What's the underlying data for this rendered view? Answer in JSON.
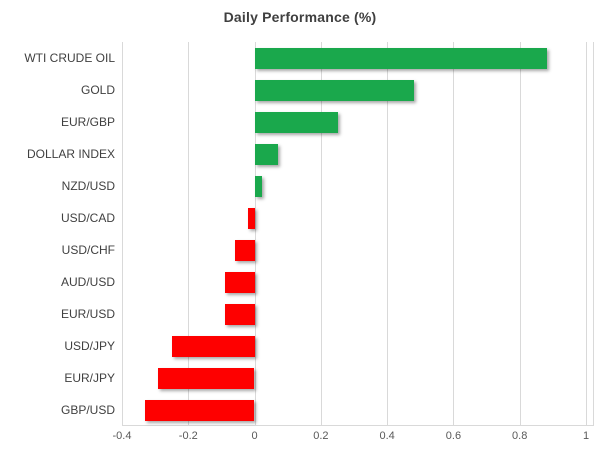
{
  "chart_data": {
    "type": "bar",
    "orientation": "horizontal",
    "title": "Daily Performance (%)",
    "categories": [
      "WTI CRUDE OIL",
      "GOLD",
      "EUR/GBP",
      "DOLLAR INDEX",
      "NZD/USD",
      "USD/CAD",
      "USD/CHF",
      "AUD/USD",
      "EUR/USD",
      "USD/JPY",
      "EUR/JPY",
      "GBP/USD"
    ],
    "values": [
      0.88,
      0.48,
      0.25,
      0.07,
      0.02,
      -0.02,
      -0.06,
      -0.09,
      -0.09,
      -0.25,
      -0.29,
      -0.33
    ],
    "xlabel": "",
    "ylabel": "",
    "xlim": [
      -0.4,
      1.0
    ],
    "xticks": [
      -0.4,
      -0.2,
      0,
      0.2,
      0.4,
      0.6,
      0.8,
      1
    ],
    "xtick_labels": [
      "-0.4",
      "-0.2",
      "0",
      "0.2",
      "0.4",
      "0.6",
      "0.8",
      "1"
    ],
    "grid": "vertical",
    "legend": "none",
    "positive_color": "#1aa84c",
    "negative_color": "#fe0000",
    "gridline_color": "#d9d9d9",
    "title_color": "#3f3f3f",
    "category_label_color": "#404040",
    "tick_label_color": "#595959"
  }
}
